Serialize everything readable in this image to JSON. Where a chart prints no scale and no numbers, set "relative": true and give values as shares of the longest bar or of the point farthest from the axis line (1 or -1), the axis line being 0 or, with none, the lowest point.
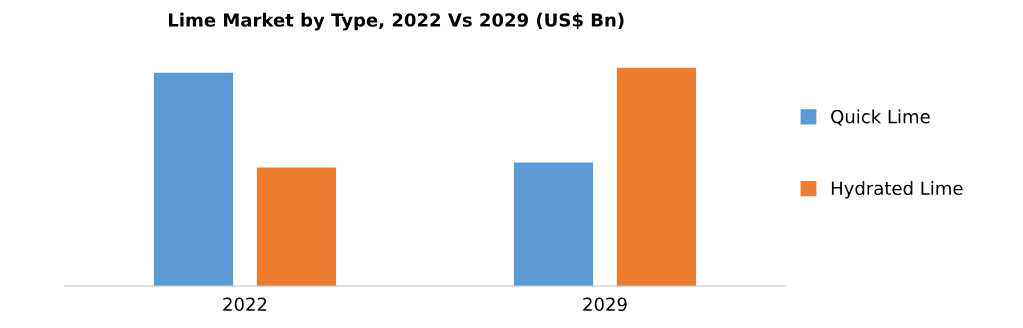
{
  "chart_data": {
    "type": "bar",
    "title": "Lime Market by Type, 2022 Vs 2029 (US$ Bn)",
    "categories": [
      "2022",
      "2029"
    ],
    "relative": true,
    "legend": "right",
    "grid": false,
    "series": [
      {
        "name": "Quick Lime",
        "color": "#5b9bd5",
        "values": [
          0.977,
          0.566
        ]
      },
      {
        "name": "Hydrated Lime",
        "color": "#ed7d31",
        "values": [
          0.543,
          1
        ]
      }
    ]
  }
}
